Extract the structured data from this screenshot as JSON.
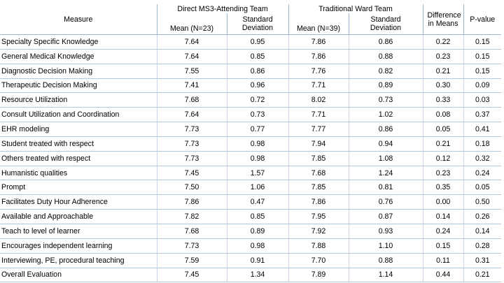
{
  "headers": {
    "measure": "Measure",
    "group1": "Direct MS3-Attending Team",
    "group2": "Traditional Ward Team",
    "difference": "Difference in Means",
    "pvalue": "P-value",
    "mean1": "Mean (N=23)",
    "sd1": "Standard Deviation",
    "mean2": "Mean (N=39)",
    "sd2": "Standard Deviation"
  },
  "rows": [
    {
      "measure": "Specialty Specific Knowledge",
      "mean1": "7.64",
      "sd1": "0.95",
      "mean2": "7.86",
      "sd2": "0.86",
      "diff": "0.22",
      "p": "0.15"
    },
    {
      "measure": "General Medical Knowledge",
      "mean1": "7.64",
      "sd1": "0.85",
      "mean2": "7.86",
      "sd2": "0.88",
      "diff": "0.23",
      "p": "0.15"
    },
    {
      "measure": "Diagnostic Decision Making",
      "mean1": "7.55",
      "sd1": "0.86",
      "mean2": "7.76",
      "sd2": "0.82",
      "diff": "0.21",
      "p": "0.15"
    },
    {
      "measure": "Therapeutic Decision Making",
      "mean1": "7.41",
      "sd1": "0.96",
      "mean2": "7.71",
      "sd2": "0.89",
      "diff": "0.30",
      "p": "0.09"
    },
    {
      "measure": "Resource Utilization",
      "mean1": "7.68",
      "sd1": "0.72",
      "mean2": "8.02",
      "sd2": "0.73",
      "diff": "0.33",
      "p": "0.03"
    },
    {
      "measure": "Consult Utilization and Coordination",
      "mean1": "7.64",
      "sd1": "0.73",
      "mean2": "7.71",
      "sd2": "1.02",
      "diff": "0.08",
      "p": "0.37"
    },
    {
      "measure": "EHR modeling",
      "mean1": "7.73",
      "sd1": "0.77",
      "mean2": "7.77",
      "sd2": "0.86",
      "diff": "0.05",
      "p": "0.41"
    },
    {
      "measure": "Student treated with respect",
      "mean1": "7.73",
      "sd1": "0.98",
      "mean2": "7.94",
      "sd2": "0.94",
      "diff": "0.21",
      "p": "0.18"
    },
    {
      "measure": "Others treated with respect",
      "mean1": "7.73",
      "sd1": "0.98",
      "mean2": "7.85",
      "sd2": "1.08",
      "diff": "0.12",
      "p": "0.32"
    },
    {
      "measure": "Humanistic qualities",
      "mean1": "7.45",
      "sd1": "1.57",
      "mean2": "7.68",
      "sd2": "1.24",
      "diff": "0.23",
      "p": "0.24"
    },
    {
      "measure": "Prompt",
      "mean1": "7.50",
      "sd1": "1.06",
      "mean2": "7.85",
      "sd2": "0.81",
      "diff": "0.35",
      "p": "0.05"
    },
    {
      "measure": "Facilitates Duty Hour Adherence",
      "mean1": "7.86",
      "sd1": "0.47",
      "mean2": "7.86",
      "sd2": "0.76",
      "diff": "0.00",
      "p": "0.50"
    },
    {
      "measure": "Available and Approachable",
      "mean1": "7.82",
      "sd1": "0.85",
      "mean2": "7.95",
      "sd2": "0.87",
      "diff": "0.14",
      "p": "0.26"
    },
    {
      "measure": "Teach to level of learner",
      "mean1": "7.68",
      "sd1": "0.89",
      "mean2": "7.92",
      "sd2": "0.93",
      "diff": "0.24",
      "p": "0.14"
    },
    {
      "measure": "Encourages independent learning",
      "mean1": "7.73",
      "sd1": "0.98",
      "mean2": "7.88",
      "sd2": "1.10",
      "diff": "0.15",
      "p": "0.28"
    },
    {
      "measure": "Interviewing, PE, procedural teaching",
      "mean1": "7.59",
      "sd1": "0.91",
      "mean2": "7.70",
      "sd2": "0.88",
      "diff": "0.11",
      "p": "0.31"
    },
    {
      "measure": "Overall Evaluation",
      "mean1": "7.45",
      "sd1": "1.34",
      "mean2": "7.89",
      "sd2": "1.14",
      "diff": "0.44",
      "p": "0.21"
    }
  ]
}
